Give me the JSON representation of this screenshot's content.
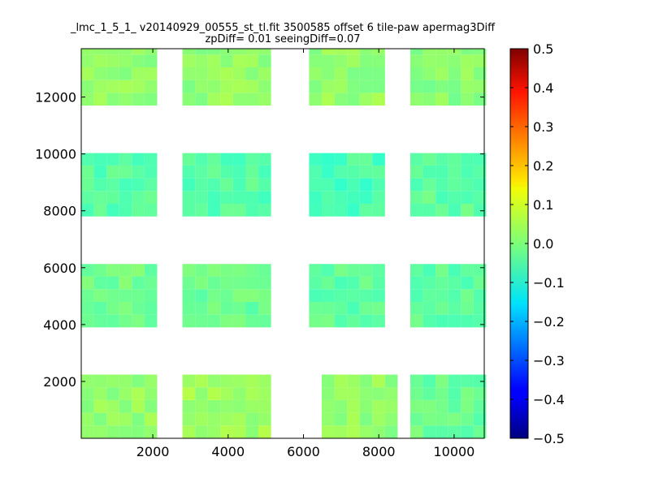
{
  "chart_data": {
    "type": "heatmap",
    "title_line1": "_lmc_1_5_1_ v20140929_00555_st_tl.fit 3500585 offset 6 tile-paw apermag3Diff",
    "title_line2": "zpDiff= 0.01 seeingDiff=0.07",
    "xlabel": "",
    "ylabel": "",
    "xlim": [
      100,
      10800
    ],
    "ylim": [
      0,
      13700
    ],
    "xticks": [
      2000,
      4000,
      6000,
      8000,
      10000
    ],
    "yticks": [
      2000,
      4000,
      6000,
      8000,
      10000,
      12000
    ],
    "colorbar": {
      "colormap": "jet",
      "range": [
        -0.5,
        0.5
      ],
      "ticks": [
        "0.5",
        "0.4",
        "0.3",
        "0.2",
        "0.1",
        "0.0",
        "−0.1",
        "−0.2",
        "−0.3",
        "−0.4",
        "−0.5"
      ]
    },
    "cell_size": [
      336,
      448
    ],
    "blocks": [
      {
        "x": [
          100,
          2115
        ],
        "y": [
          0,
          2240
        ],
        "value": 0.02
      },
      {
        "x": [
          2788,
          5140
        ],
        "y": [
          0,
          2240
        ],
        "value": 0.03
      },
      {
        "x": [
          6485,
          8500
        ],
        "y": [
          0,
          2240
        ],
        "value": 0.02
      },
      {
        "x": [
          8837,
          10852
        ],
        "y": [
          0,
          2240
        ],
        "value": -0.02
      },
      {
        "x": [
          100,
          2115
        ],
        "y": [
          3900,
          6130
        ],
        "value": -0.01
      },
      {
        "x": [
          2788,
          5140
        ],
        "y": [
          3900,
          6130
        ],
        "value": -0.02
      },
      {
        "x": [
          6150,
          8165
        ],
        "y": [
          3900,
          6130
        ],
        "value": -0.03
      },
      {
        "x": [
          8837,
          10852
        ],
        "y": [
          3900,
          6130
        ],
        "value": -0.03
      },
      {
        "x": [
          100,
          2115
        ],
        "y": [
          7800,
          10030
        ],
        "value": -0.04
      },
      {
        "x": [
          2788,
          5140
        ],
        "y": [
          7800,
          10030
        ],
        "value": -0.04
      },
      {
        "x": [
          6150,
          8165
        ],
        "y": [
          7800,
          10030
        ],
        "value": -0.05
      },
      {
        "x": [
          8837,
          10852
        ],
        "y": [
          7800,
          10030
        ],
        "value": -0.03
      },
      {
        "x": [
          100,
          2115
        ],
        "y": [
          11700,
          13700
        ],
        "value": 0.02
      },
      {
        "x": [
          2788,
          5140
        ],
        "y": [
          11700,
          13700
        ],
        "value": 0.02
      },
      {
        "x": [
          6150,
          8165
        ],
        "y": [
          11700,
          13700
        ],
        "value": 0.02
      },
      {
        "x": [
          8837,
          10852
        ],
        "y": [
          11700,
          13700
        ],
        "value": 0.01
      }
    ]
  }
}
